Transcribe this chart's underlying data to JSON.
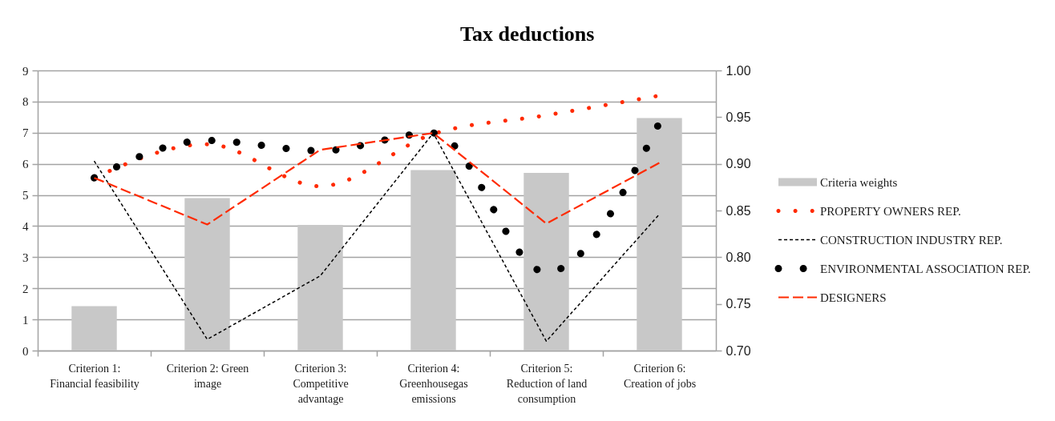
{
  "chart_data": {
    "type": "bar",
    "title": "Tax deductions",
    "categories": [
      "Criterion 1: Financial feasibility",
      "Criterion 2: Green image",
      "Criterion 3: Competitive advantage",
      "Criterion 4: Greenhousegas emissions",
      "Criterion 5: Reduction of land consumption",
      "Criterion 6: Creation of jobs"
    ],
    "series": [
      {
        "name": "Criteria weights",
        "color": "#c8c8c8",
        "values": [
          1.43,
          4.9,
          4.04,
          5.8,
          5.71,
          7.47
        ]
      },
      {
        "name": "PROPERTY OWNERS REP.",
        "type": "line",
        "axis": "y2",
        "color": "#ff2a00",
        "line_style": "dotted",
        "values": [
          0.885,
          0.921,
          0.876,
          0.932,
          0.952,
          0.973
        ]
      },
      {
        "name": "CONSTRUCTION INDUSTRY REP.",
        "type": "line",
        "axis": "y2",
        "color": "#000000",
        "line_style": "dashed",
        "values": [
          0.903,
          0.712,
          0.78,
          0.933,
          0.71,
          0.846
        ]
      },
      {
        "name": "ENVIRONMENTAL ASSOCIATION REP.",
        "type": "line",
        "axis": "y2",
        "color": "#000000",
        "line_style": "dotted",
        "values": [
          0.885,
          0.925,
          0.914,
          0.933,
          0.784,
          0.944
        ]
      },
      {
        "name": "DESIGNERS",
        "type": "line",
        "axis": "y2",
        "color": "#ff2a00",
        "line_style": "dashed",
        "values": [
          0.885,
          0.835,
          0.915,
          0.933,
          0.836,
          0.901
        ]
      }
    ],
    "ylim": [
      0,
      9
    ],
    "yticks": [
      0,
      1,
      2,
      3,
      4,
      5,
      6,
      7,
      8,
      9
    ],
    "y2lim": [
      0.7,
      1.0
    ],
    "y2ticks": [
      {
        "value": 0.7,
        "label": "0.70"
      },
      {
        "value": 0.75,
        "label": "0.75"
      },
      {
        "value": 0.8,
        "label": "0.80"
      },
      {
        "value": 0.85,
        "label": "0.85"
      },
      {
        "value": 0.9,
        "label": "0.90"
      },
      {
        "value": 0.95,
        "label": "0.95"
      },
      {
        "value": 1.0,
        "label": "1.00"
      }
    ],
    "grid": "y",
    "legend": "right"
  }
}
